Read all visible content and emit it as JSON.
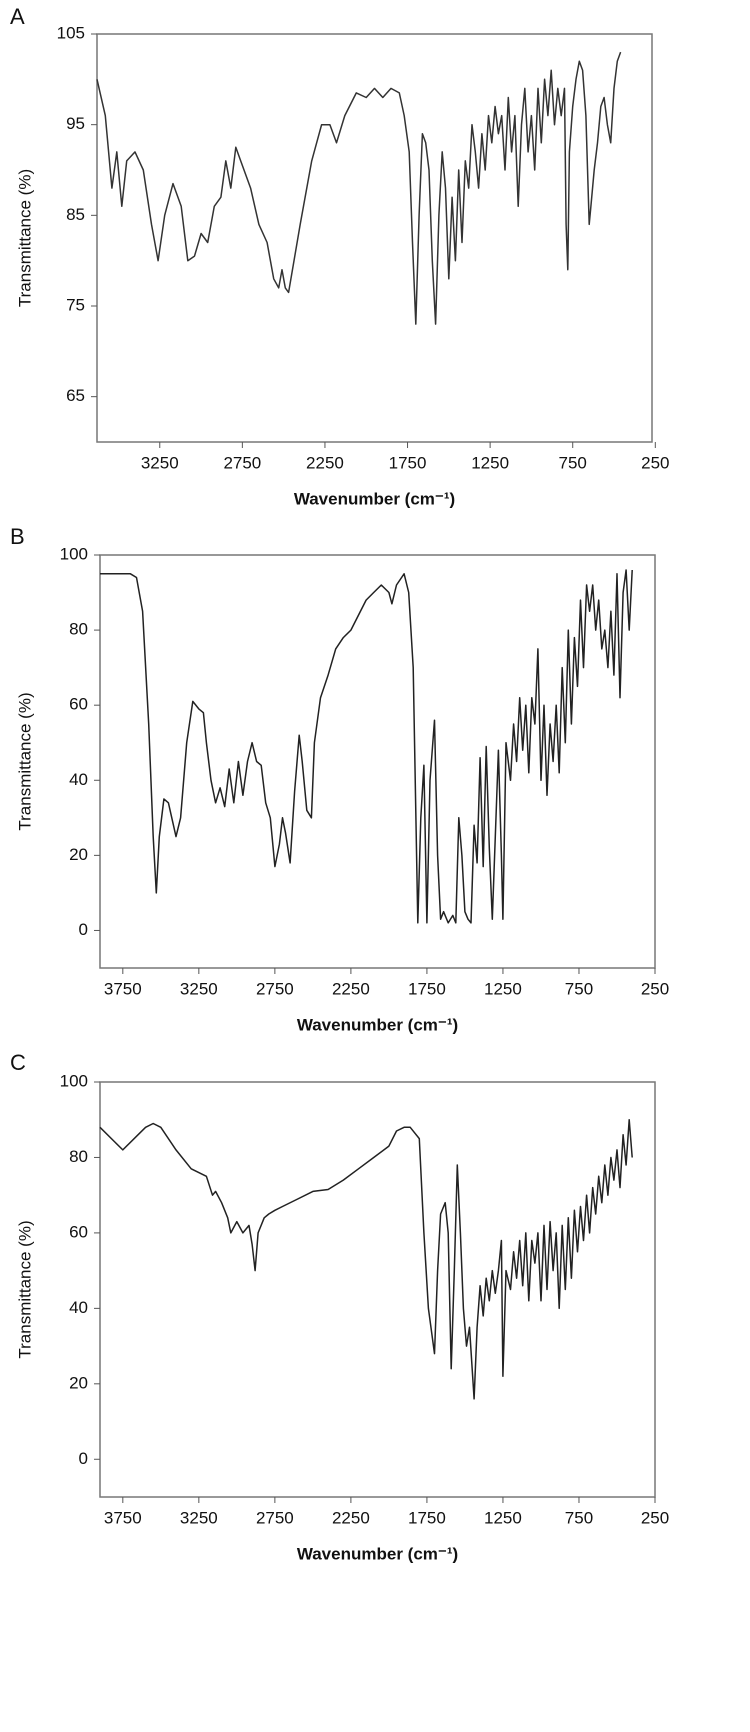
{
  "chart_data": [
    {
      "type": "line",
      "title": "A",
      "xlabel": "Wavenumber (cm⁻¹)",
      "ylabel": "Transmittance (%)",
      "color": "#333333",
      "xlim": [
        3630,
        270
      ],
      "ylim": [
        60,
        105
      ],
      "xticks": [
        3250,
        2750,
        2250,
        1750,
        1250,
        750,
        250
      ],
      "yticks": [
        65,
        75,
        85,
        95,
        105
      ],
      "x": [
        3630,
        3580,
        3540,
        3510,
        3480,
        3450,
        3400,
        3350,
        3300,
        3260,
        3220,
        3170,
        3120,
        3080,
        3040,
        3000,
        2960,
        2920,
        2880,
        2850,
        2820,
        2790,
        2760,
        2700,
        2650,
        2600,
        2560,
        2530,
        2510,
        2490,
        2470,
        2400,
        2330,
        2270,
        2220,
        2180,
        2130,
        2060,
        2000,
        1950,
        1900,
        1850,
        1800,
        1770,
        1740,
        1720,
        1700,
        1680,
        1660,
        1640,
        1620,
        1600,
        1580,
        1560,
        1540,
        1520,
        1500,
        1480,
        1460,
        1440,
        1420,
        1400,
        1380,
        1360,
        1340,
        1320,
        1300,
        1280,
        1260,
        1240,
        1220,
        1200,
        1180,
        1160,
        1140,
        1120,
        1100,
        1080,
        1060,
        1040,
        1020,
        1000,
        980,
        960,
        940,
        920,
        900,
        880,
        860,
        840,
        820,
        800,
        790,
        780,
        770,
        750,
        730,
        710,
        690,
        670,
        650,
        640,
        620,
        600,
        580,
        560,
        540,
        520,
        500,
        480,
        460
      ],
      "values": [
        100,
        96,
        88,
        92,
        86,
        91,
        92,
        90,
        84,
        80,
        85,
        88.5,
        86,
        80,
        80.5,
        83,
        82,
        86,
        87,
        91,
        88,
        92.5,
        91,
        88,
        84,
        82,
        78,
        77,
        79,
        77,
        76.5,
        84,
        91,
        95,
        95,
        93,
        96,
        98.5,
        98,
        99,
        98,
        99,
        98.5,
        96,
        92,
        82,
        73,
        85,
        94,
        93,
        90,
        80,
        73,
        85,
        92,
        88,
        78,
        87,
        80,
        90,
        82,
        91,
        88,
        95,
        92,
        88,
        94,
        90,
        96,
        93,
        97,
        94,
        96,
        90,
        98,
        92,
        96,
        86,
        95,
        99,
        92,
        96,
        90,
        99,
        93,
        100,
        96,
        101,
        95,
        99,
        96,
        99,
        84,
        79,
        92,
        97,
        100,
        102,
        101,
        96,
        84,
        86,
        90,
        93,
        97,
        98,
        95,
        93,
        99,
        102,
        103
      ]
    },
    {
      "type": "line",
      "title": "B",
      "xlabel": "Wavenumber (cm⁻¹)",
      "ylabel": "Transmittance (%)",
      "color": "#222222",
      "xlim": [
        3900,
        250
      ],
      "ylim": [
        -10,
        100
      ],
      "xticks": [
        3750,
        3250,
        2750,
        2250,
        1750,
        1250,
        750,
        250
      ],
      "yticks": [
        0,
        20,
        40,
        60,
        80,
        100
      ],
      "x": [
        3900,
        3800,
        3700,
        3660,
        3620,
        3580,
        3550,
        3530,
        3510,
        3480,
        3450,
        3400,
        3370,
        3330,
        3290,
        3250,
        3220,
        3200,
        3170,
        3140,
        3110,
        3080,
        3050,
        3020,
        2990,
        2960,
        2930,
        2900,
        2870,
        2840,
        2810,
        2780,
        2750,
        2720,
        2700,
        2680,
        2650,
        2620,
        2590,
        2570,
        2540,
        2510,
        2490,
        2450,
        2400,
        2350,
        2300,
        2250,
        2200,
        2150,
        2100,
        2050,
        2000,
        1980,
        1950,
        1900,
        1870,
        1840,
        1810,
        1790,
        1770,
        1750,
        1730,
        1700,
        1680,
        1660,
        1640,
        1610,
        1580,
        1560,
        1540,
        1520,
        1500,
        1480,
        1460,
        1440,
        1420,
        1400,
        1380,
        1360,
        1340,
        1320,
        1300,
        1280,
        1260,
        1250,
        1230,
        1200,
        1180,
        1160,
        1140,
        1120,
        1100,
        1080,
        1060,
        1040,
        1020,
        1000,
        980,
        960,
        940,
        920,
        900,
        880,
        860,
        840,
        820,
        800,
        780,
        760,
        740,
        720,
        700,
        680,
        660,
        640,
        620,
        600,
        580,
        560,
        540,
        520,
        500,
        480,
        460,
        440,
        420,
        400
      ],
      "values": [
        95,
        95,
        95,
        94,
        85,
        55,
        25,
        10,
        25,
        35,
        34,
        25,
        30,
        50,
        61,
        59,
        58,
        50,
        40,
        34,
        38,
        33,
        43,
        34,
        45,
        36,
        45,
        50,
        45,
        44,
        34,
        30,
        17,
        23,
        30,
        26,
        18,
        37,
        52,
        45,
        32,
        30,
        50,
        62,
        68,
        75,
        78,
        80,
        84,
        88,
        90,
        92,
        90,
        87,
        92,
        95,
        90,
        70,
        2,
        30,
        44,
        2,
        40,
        56,
        20,
        3,
        5,
        2,
        4,
        2,
        30,
        20,
        5,
        3,
        2,
        28,
        18,
        46,
        17,
        49,
        22,
        3,
        25,
        48,
        20,
        3,
        50,
        40,
        55,
        45,
        62,
        48,
        60,
        42,
        62,
        55,
        75,
        40,
        60,
        36,
        55,
        45,
        60,
        42,
        70,
        50,
        80,
        55,
        78,
        65,
        88,
        70,
        92,
        85,
        92,
        80,
        88,
        75,
        80,
        70,
        85,
        68,
        95,
        62,
        90,
        96,
        80,
        96
      ]
    },
    {
      "type": "line",
      "title": "C",
      "xlabel": "Wavenumber (cm⁻¹)",
      "ylabel": "Transmittance (%)",
      "color": "#222222",
      "xlim": [
        3900,
        250
      ],
      "ylim": [
        -10,
        100
      ],
      "xticks": [
        3750,
        3250,
        2750,
        2250,
        1750,
        1250,
        750,
        250
      ],
      "yticks": [
        0,
        20,
        40,
        60,
        80,
        100
      ],
      "x": [
        3900,
        3800,
        3750,
        3650,
        3600,
        3550,
        3500,
        3400,
        3300,
        3200,
        3160,
        3140,
        3100,
        3060,
        3040,
        3000,
        2960,
        2920,
        2900,
        2880,
        2860,
        2820,
        2790,
        2750,
        2700,
        2600,
        2500,
        2400,
        2300,
        2200,
        2100,
        2000,
        1950,
        1900,
        1860,
        1800,
        1770,
        1740,
        1700,
        1680,
        1660,
        1630,
        1610,
        1590,
        1570,
        1550,
        1530,
        1510,
        1490,
        1470,
        1440,
        1420,
        1400,
        1380,
        1360,
        1340,
        1320,
        1300,
        1280,
        1260,
        1250,
        1230,
        1200,
        1180,
        1160,
        1140,
        1120,
        1100,
        1080,
        1060,
        1040,
        1020,
        1000,
        980,
        960,
        940,
        920,
        900,
        880,
        860,
        840,
        820,
        800,
        780,
        760,
        740,
        720,
        700,
        680,
        660,
        640,
        620,
        600,
        580,
        560,
        540,
        520,
        500,
        480,
        460,
        440,
        420,
        400
      ],
      "values": [
        88,
        84,
        82,
        86,
        88,
        89,
        88,
        82,
        77,
        75,
        70,
        71,
        68,
        64,
        60,
        63,
        60,
        62,
        57,
        50,
        60,
        64,
        65,
        66,
        67,
        69,
        71,
        71.5,
        74,
        77,
        80,
        83,
        87,
        88,
        88,
        85,
        60,
        40,
        28,
        50,
        65,
        68,
        60,
        24,
        50,
        78,
        60,
        40,
        30,
        35,
        16,
        35,
        46,
        38,
        48,
        42,
        50,
        44,
        50,
        58,
        22,
        50,
        45,
        55,
        48,
        58,
        46,
        60,
        42,
        58,
        52,
        60,
        42,
        62,
        45,
        63,
        50,
        60,
        40,
        62,
        45,
        64,
        48,
        66,
        55,
        67,
        58,
        70,
        60,
        72,
        65,
        75,
        68,
        78,
        70,
        80,
        74,
        82,
        72,
        86,
        78,
        90,
        80
      ]
    }
  ]
}
